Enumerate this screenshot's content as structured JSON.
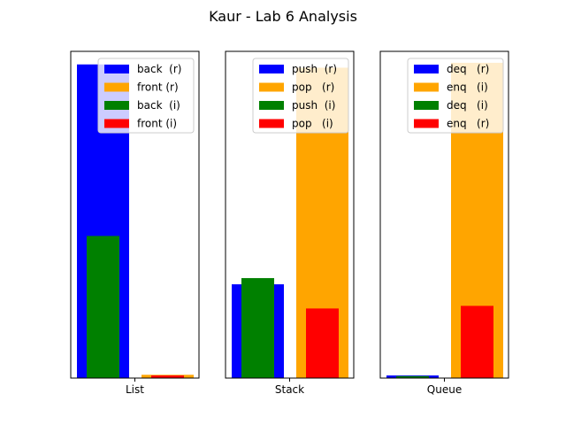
{
  "figure": {
    "title": "Kaur - Lab 6 Analysis"
  },
  "chart_data": [
    {
      "type": "bar",
      "xlabel": "",
      "ylabel": "",
      "category": "List",
      "ylim": [
        0,
        100
      ],
      "yticks_visible": false,
      "grid": false,
      "legend_position": "top-right",
      "series": [
        {
          "name": "back  (r)",
          "color": "#0000ff",
          "value": 96,
          "bar": "wide"
        },
        {
          "name": "front (r)",
          "color": "#ffa500",
          "value": 1,
          "bar": "wide"
        },
        {
          "name": "back  (i)",
          "color": "#008000",
          "value": 43.5,
          "bar": "narrow"
        },
        {
          "name": "front (i)",
          "color": "#ff0000",
          "value": 0.8,
          "bar": "narrow"
        }
      ]
    },
    {
      "type": "bar",
      "xlabel": "",
      "ylabel": "",
      "category": "Stack",
      "ylim": [
        0,
        100
      ],
      "yticks_visible": false,
      "grid": false,
      "legend_position": "top-right",
      "series": [
        {
          "name": "push  (r)",
          "color": "#0000ff",
          "value": 28.7,
          "bar": "wide"
        },
        {
          "name": "pop   (r)",
          "color": "#ffa500",
          "value": 95,
          "bar": "wide"
        },
        {
          "name": "push  (i)",
          "color": "#008000",
          "value": 30.6,
          "bar": "narrow"
        },
        {
          "name": "pop   (i)",
          "color": "#ff0000",
          "value": 21.3,
          "bar": "narrow"
        }
      ]
    },
    {
      "type": "bar",
      "xlabel": "",
      "ylabel": "",
      "category": "Queue",
      "ylim": [
        0,
        100
      ],
      "yticks_visible": false,
      "grid": false,
      "legend_position": "top-right",
      "series": [
        {
          "name": "deq   (r)",
          "color": "#0000ff",
          "value": 0.8,
          "bar": "wide"
        },
        {
          "name": "enq   (i)",
          "color": "#ffa500",
          "value": 96.5,
          "bar": "wide"
        },
        {
          "name": "deq   (i)",
          "color": "#008000",
          "value": 0.6,
          "bar": "narrow"
        },
        {
          "name": "enq   (r)",
          "color": "#ff0000",
          "value": 22.1,
          "bar": "narrow"
        }
      ]
    }
  ]
}
